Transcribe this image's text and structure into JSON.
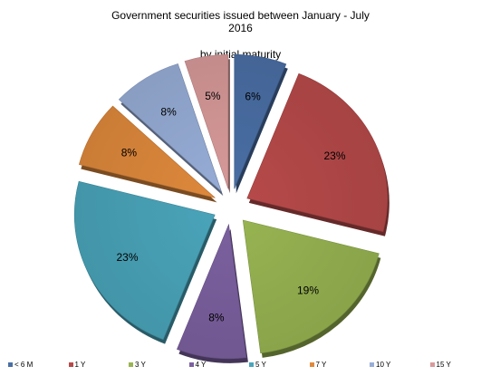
{
  "chart_data": {
    "type": "pie",
    "title_line1": "Government securities issued between January - July",
    "title_line2": "2016",
    "subtitle": "by initial maturity",
    "legend_position": "bottom",
    "exploded": true,
    "slices": [
      {
        "label": "< 6 M",
        "value": 6,
        "display": "6%",
        "color": "#4a6fa5"
      },
      {
        "label": "1 Y",
        "value": 23,
        "display": "23%",
        "color": "#b84a4a"
      },
      {
        "label": "3 Y",
        "value": 19,
        "display": "19%",
        "color": "#98b552"
      },
      {
        "label": "4 Y",
        "value": 8,
        "display": "8%",
        "color": "#7c61a0"
      },
      {
        "label": "5 Y",
        "value": 23,
        "display": "23%",
        "color": "#4aa5bb"
      },
      {
        "label": "7 Y",
        "value": 8,
        "display": "8%",
        "color": "#e08a3c"
      },
      {
        "label": "10 Y",
        "value": 8,
        "display": "8%",
        "color": "#98aed8"
      },
      {
        "label": "15 Y",
        "value": 5,
        "display": "5%",
        "color": "#d99a9a"
      }
    ]
  }
}
